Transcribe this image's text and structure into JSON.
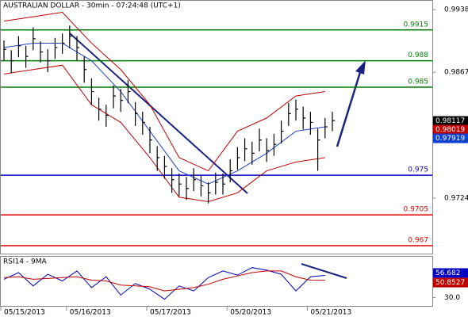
{
  "chart_data": [
    {
      "type": "ohlc",
      "title": "AUSTRALIAN DOLLAR - 30min - 07:24:48 (UTC+1)",
      "categories": [
        "05/15/2013",
        null,
        null,
        null,
        null,
        null,
        null,
        null,
        null,
        "05/16/2013",
        null,
        null,
        null,
        null,
        null,
        null,
        null,
        null,
        null,
        null,
        "05/17/2013",
        null,
        null,
        null,
        null,
        null,
        null,
        null,
        null,
        null,
        null,
        "05/20/2013",
        null,
        null,
        null,
        null,
        null,
        null,
        null,
        null,
        null,
        null,
        "05/21/2013",
        null,
        null,
        null
      ],
      "color": "#000000",
      "high": [
        0.9903,
        0.9892,
        0.9908,
        0.9897,
        0.9918,
        0.9902,
        0.9893,
        0.9906,
        0.9911,
        0.992,
        0.9908,
        0.9885,
        0.986,
        0.9838,
        0.983,
        0.9852,
        0.9848,
        0.9858,
        0.9833,
        0.9822,
        0.9805,
        0.9783,
        0.9772,
        0.9758,
        0.9752,
        0.9748,
        0.9758,
        0.975,
        0.9742,
        0.9753,
        0.9752,
        0.9768,
        0.9782,
        0.9792,
        0.9788,
        0.9803,
        0.9792,
        0.9797,
        0.9812,
        0.9832,
        0.9836,
        0.9828,
        0.9822,
        0.9803,
        0.9815,
        0.9822
      ],
      "low": [
        0.988,
        0.9866,
        0.9884,
        0.9872,
        0.9892,
        0.9878,
        0.9867,
        0.9882,
        0.9888,
        0.9894,
        0.988,
        0.9855,
        0.983,
        0.9812,
        0.9805,
        0.9826,
        0.9822,
        0.9832,
        0.9806,
        0.9796,
        0.9775,
        0.9755,
        0.9746,
        0.973,
        0.9726,
        0.9722,
        0.9732,
        0.9726,
        0.9718,
        0.9728,
        0.9728,
        0.9742,
        0.9756,
        0.9766,
        0.9762,
        0.9777,
        0.9765,
        0.9772,
        0.9786,
        0.9806,
        0.9812,
        0.9802,
        0.9796,
        0.9755,
        0.9792,
        0.98
      ],
      "close": [
        0.9893,
        0.988,
        0.9897,
        0.9885,
        0.9905,
        0.989,
        0.988,
        0.9895,
        0.99,
        0.9908,
        0.9895,
        0.987,
        0.9845,
        0.9825,
        0.9818,
        0.984,
        0.9835,
        0.9845,
        0.982,
        0.981,
        0.979,
        0.977,
        0.976,
        0.9745,
        0.974,
        0.9735,
        0.9745,
        0.9738,
        0.973,
        0.9742,
        0.974,
        0.9755,
        0.977,
        0.978,
        0.9775,
        0.979,
        0.9778,
        0.9785,
        0.98,
        0.982,
        0.9825,
        0.9815,
        0.981,
        0.979,
        0.9805,
        0.9812
      ],
      "series": [
        {
          "x": [
            0,
            4,
            8,
            12,
            16,
            20,
            24,
            28,
            32,
            36,
            40,
            44
          ],
          "color": "#c00000",
          "values": [
            0.9925,
            0.993,
            0.9935,
            0.99,
            0.987,
            0.983,
            0.977,
            0.9755,
            0.98,
            0.9815,
            0.984,
            0.9845
          ]
        },
        {
          "x": [
            0,
            4,
            8,
            12,
            16,
            20,
            24,
            28,
            32,
            36,
            40,
            44
          ],
          "color": "#2040c0",
          "values": [
            0.9895,
            0.99,
            0.99,
            0.988,
            0.9845,
            0.98,
            0.9755,
            0.974,
            0.9755,
            0.9775,
            0.98,
            0.9805
          ]
        },
        {
          "x": [
            0,
            4,
            8,
            12,
            16,
            20,
            24,
            28,
            32,
            36,
            40,
            44
          ],
          "color": "#c00000",
          "values": [
            0.9865,
            0.987,
            0.9875,
            0.983,
            0.981,
            0.977,
            0.9725,
            0.972,
            0.973,
            0.9755,
            0.9765,
            0.977
          ]
        }
      ],
      "levels": [
        {
          "value": 0.9915,
          "color": "#008000"
        },
        {
          "value": 0.988,
          "color": "#008000"
        },
        {
          "value": 0.985,
          "color": "#008000"
        },
        {
          "value": 0.975,
          "color": "#0000c0"
        },
        {
          "value": 0.9705,
          "color": "#e00000"
        },
        {
          "value": 0.967,
          "color": "#e00000"
        }
      ],
      "current": [
        {
          "value": 0.98117,
          "color": "#000000"
        },
        {
          "value": 0.98019,
          "color": "#c00000"
        },
        {
          "value": 0.97919,
          "color": "#1040d0"
        }
      ],
      "ylim": [
        0.9661,
        0.9949
      ],
      "yticks": [
        0.9938,
        0.9867,
        0.9724
      ]
    },
    {
      "type": "line",
      "title": "RSI14 - 9MA",
      "series": [
        {
          "x": [
            0,
            2,
            4,
            6,
            8,
            10,
            12,
            14,
            16,
            18,
            20,
            22,
            24,
            26,
            28,
            30,
            32,
            34,
            36,
            38,
            40,
            42,
            44
          ],
          "color": "#0000c0",
          "values": [
            52,
            60,
            44,
            58,
            50,
            62,
            42,
            55,
            33,
            47,
            40,
            28,
            44,
            38,
            54,
            62,
            57,
            66,
            63,
            58,
            38,
            55,
            56.682
          ],
          "current": 56.682
        },
        {
          "x": [
            0,
            2,
            4,
            6,
            8,
            10,
            12,
            14,
            16,
            18,
            20,
            22,
            24,
            26,
            28,
            30,
            32,
            34,
            36,
            38,
            40,
            42,
            44
          ],
          "color": "#c00000",
          "values": [
            54,
            55,
            52,
            53,
            54,
            55,
            51,
            50,
            45,
            44,
            43,
            38,
            40,
            42,
            46,
            52,
            56,
            60,
            62,
            62,
            55,
            51,
            50.8527
          ],
          "current": 50.8527
        }
      ],
      "ylim": [
        20,
        80
      ],
      "yticks": [
        {
          "value": 30,
          "label": "30.0"
        }
      ]
    }
  ]
}
